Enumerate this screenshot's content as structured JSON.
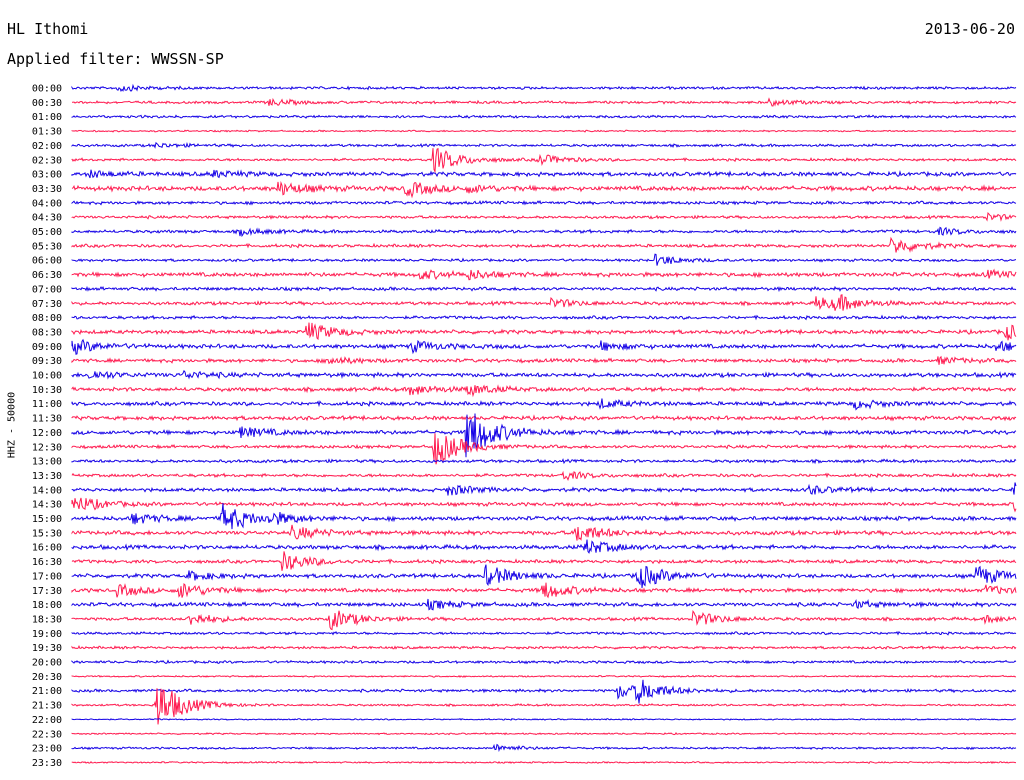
{
  "header": {
    "station": "HL Ithomi",
    "date": "2013-06-20",
    "filter": "Applied filter: WWSSN-SP"
  },
  "chart_data": {
    "type": "line",
    "title": "HL Ithomi",
    "channel_label": "HHZ - 50000",
    "colors": [
      "#1400e6",
      "#ff1a4f"
    ],
    "rows": [
      "00:00",
      "00:30",
      "01:00",
      "01:30",
      "02:00",
      "02:30",
      "03:00",
      "03:30",
      "04:00",
      "04:30",
      "05:00",
      "05:30",
      "06:00",
      "06:30",
      "07:00",
      "07:30",
      "08:00",
      "08:30",
      "09:00",
      "09:30",
      "10:00",
      "10:30",
      "11:00",
      "11:30",
      "12:00",
      "12:30",
      "13:00",
      "13:30",
      "14:00",
      "14:30",
      "15:00",
      "15:30",
      "16:00",
      "16:30",
      "17:00",
      "17:30",
      "18:00",
      "18:30",
      "19:00",
      "19:30",
      "20:00",
      "20:30",
      "21:00",
      "21:30",
      "22:00",
      "22:30",
      "23:00",
      "23:30"
    ],
    "noise": [
      1.0,
      1.0,
      1.0,
      0.6,
      1.0,
      1.0,
      1.6,
      1.8,
      1.2,
      1.1,
      1.2,
      1.2,
      1.0,
      1.6,
      1.3,
      1.3,
      1.2,
      1.5,
      1.6,
      1.4,
      1.6,
      1.5,
      1.5,
      1.5,
      1.6,
      1.2,
      1.2,
      1.2,
      1.4,
      1.4,
      1.6,
      1.6,
      1.6,
      1.3,
      1.5,
      1.5,
      1.5,
      1.2,
      1.0,
      1.0,
      1.0,
      0.6,
      1.1,
      0.8,
      0.5,
      0.6,
      0.8,
      0.6
    ],
    "events": [
      {
        "row": 0,
        "t": 0.05,
        "amp": 3
      },
      {
        "row": 1,
        "t": 0.21,
        "amp": 3
      },
      {
        "row": 1,
        "t": 0.74,
        "amp": 3
      },
      {
        "row": 4,
        "t": 0.09,
        "amp": 2
      },
      {
        "row": 5,
        "t": 0.385,
        "amp": 12
      },
      {
        "row": 5,
        "t": 0.495,
        "amp": 5
      },
      {
        "row": 6,
        "t": 0.02,
        "amp": 3
      },
      {
        "row": 6,
        "t": 0.15,
        "amp": 3
      },
      {
        "row": 7,
        "t": 0.22,
        "amp": 6
      },
      {
        "row": 7,
        "t": 0.355,
        "amp": 7
      },
      {
        "row": 7,
        "t": 0.42,
        "amp": 3
      },
      {
        "row": 9,
        "t": 0.97,
        "amp": 3
      },
      {
        "row": 10,
        "t": 0.18,
        "amp": 3
      },
      {
        "row": 10,
        "t": 0.92,
        "amp": 3
      },
      {
        "row": 11,
        "t": 0.87,
        "amp": 8
      },
      {
        "row": 12,
        "t": 0.62,
        "amp": 5
      },
      {
        "row": 13,
        "t": 0.37,
        "amp": 4
      },
      {
        "row": 13,
        "t": 0.42,
        "amp": 4
      },
      {
        "row": 13,
        "t": 0.97,
        "amp": 3
      },
      {
        "row": 15,
        "t": 0.51,
        "amp": 4
      },
      {
        "row": 15,
        "t": 0.79,
        "amp": 6
      },
      {
        "row": 15,
        "t": 0.81,
        "amp": 6
      },
      {
        "row": 17,
        "t": 0.25,
        "amp": 9
      },
      {
        "row": 17,
        "t": 0.99,
        "amp": 7
      },
      {
        "row": 18,
        "t": 0.0,
        "amp": 7
      },
      {
        "row": 18,
        "t": 0.36,
        "amp": 5
      },
      {
        "row": 18,
        "t": 0.56,
        "amp": 4
      },
      {
        "row": 18,
        "t": 0.98,
        "amp": 5
      },
      {
        "row": 19,
        "t": 0.27,
        "amp": 4
      },
      {
        "row": 19,
        "t": 0.92,
        "amp": 3
      },
      {
        "row": 20,
        "t": 0.02,
        "amp": 4
      },
      {
        "row": 20,
        "t": 0.12,
        "amp": 3
      },
      {
        "row": 21,
        "t": 0.36,
        "amp": 5
      },
      {
        "row": 21,
        "t": 0.42,
        "amp": 5
      },
      {
        "row": 22,
        "t": 0.56,
        "amp": 4
      },
      {
        "row": 22,
        "t": 0.83,
        "amp": 4
      },
      {
        "row": 24,
        "t": 0.18,
        "amp": 5
      },
      {
        "row": 24,
        "t": 0.42,
        "amp": 26
      },
      {
        "row": 25,
        "t": 0.385,
        "amp": 18
      },
      {
        "row": 27,
        "t": 0.52,
        "amp": 4
      },
      {
        "row": 28,
        "t": 0.4,
        "amp": 5
      },
      {
        "row": 28,
        "t": 0.78,
        "amp": 4
      },
      {
        "row": 28,
        "t": 1.0,
        "amp": 7
      },
      {
        "row": 29,
        "t": 0.0,
        "amp": 9
      },
      {
        "row": 29,
        "t": 1.0,
        "amp": 5
      },
      {
        "row": 30,
        "t": 0.065,
        "amp": 5
      },
      {
        "row": 30,
        "t": 0.16,
        "amp": 14
      },
      {
        "row": 30,
        "t": 0.21,
        "amp": 5
      },
      {
        "row": 31,
        "t": 0.235,
        "amp": 6
      },
      {
        "row": 31,
        "t": 0.535,
        "amp": 9
      },
      {
        "row": 32,
        "t": 0.545,
        "amp": 7
      },
      {
        "row": 33,
        "t": 0.225,
        "amp": 9
      },
      {
        "row": 34,
        "t": 0.125,
        "amp": 4
      },
      {
        "row": 34,
        "t": 0.44,
        "amp": 10
      },
      {
        "row": 34,
        "t": 0.6,
        "amp": 12
      },
      {
        "row": 34,
        "t": 0.96,
        "amp": 9
      },
      {
        "row": 35,
        "t": 0.05,
        "amp": 5
      },
      {
        "row": 35,
        "t": 0.115,
        "amp": 7
      },
      {
        "row": 35,
        "t": 0.5,
        "amp": 8
      },
      {
        "row": 35,
        "t": 0.97,
        "amp": 4
      },
      {
        "row": 36,
        "t": 0.38,
        "amp": 4
      },
      {
        "row": 36,
        "t": 0.83,
        "amp": 3
      },
      {
        "row": 37,
        "t": 0.125,
        "amp": 6
      },
      {
        "row": 37,
        "t": 0.275,
        "amp": 10
      },
      {
        "row": 37,
        "t": 0.66,
        "amp": 7
      },
      {
        "row": 37,
        "t": 0.97,
        "amp": 3
      },
      {
        "row": 42,
        "t": 0.58,
        "amp": 7
      },
      {
        "row": 42,
        "t": 0.6,
        "amp": 9
      },
      {
        "row": 43,
        "t": 0.09,
        "amp": 26
      },
      {
        "row": 46,
        "t": 0.45,
        "amp": 3
      }
    ]
  }
}
